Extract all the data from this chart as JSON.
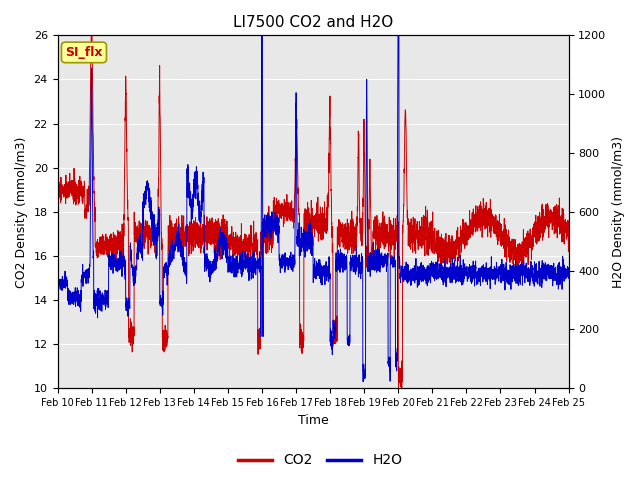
{
  "title": "LI7500 CO2 and H2O",
  "xlabel": "Time",
  "ylabel_left": "CO2 Density (mmol/m3)",
  "ylabel_right": "H2O Density (mmol/m3)",
  "ylim_left": [
    10,
    26
  ],
  "ylim_right": [
    0,
    1200
  ],
  "yticks_left": [
    10,
    12,
    14,
    16,
    18,
    20,
    22,
    24,
    26
  ],
  "yticks_right": [
    0,
    200,
    400,
    600,
    800,
    1000,
    1200
  ],
  "xtick_labels": [
    "Feb 10",
    "Feb 11",
    "Feb 12",
    "Feb 13",
    "Feb 14",
    "Feb 15",
    "Feb 16",
    "Feb 17",
    "Feb 18",
    "Feb 19",
    "Feb 20",
    "Feb 21",
    "Feb 22",
    "Feb 23",
    "Feb 24",
    "Feb 25"
  ],
  "co2_color": "#cc0000",
  "h2o_color": "#0000cc",
  "bg_color": "#e8e8e8",
  "annotation_text": "SI_flx",
  "annotation_facecolor": "#ffff99",
  "annotation_edgecolor": "#999900",
  "annotation_textcolor": "#cc0000",
  "legend_co2": "CO2",
  "legend_h2o": "H2O",
  "n_points": 3600,
  "seed": 42
}
